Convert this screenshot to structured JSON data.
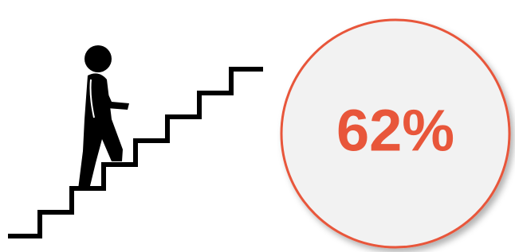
{
  "stat": "62%"
}
